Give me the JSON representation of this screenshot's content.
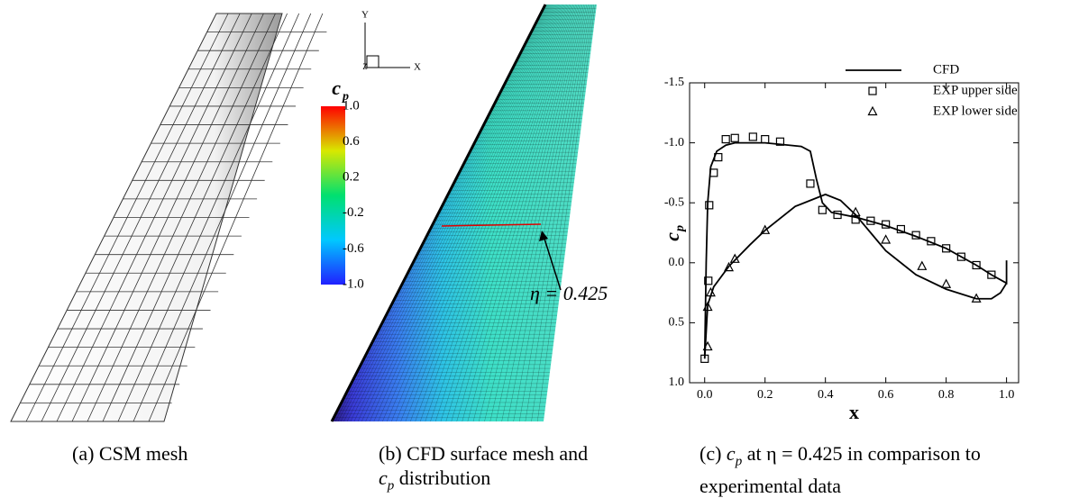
{
  "figure": {
    "caption_a": "(a) CSM mesh",
    "caption_b": {
      "prefix": "(b) CFD surface mesh and",
      "c": "c",
      "p": "p",
      "suffix": "distribution"
    },
    "caption_c": {
      "prefix": "(c)",
      "c": "c",
      "p": "p",
      "suffix": "at η = 0.425 in comparison to experimental data"
    },
    "colorbar": {
      "c": "c",
      "p": "p",
      "ticks": [
        {
          "value": 1,
          "label": "1.0"
        },
        0.6,
        0.2,
        -0.2,
        -0.6,
        {
          "value": -1,
          "label": "-1.0"
        }
      ],
      "lim": [
        -1,
        1
      ]
    },
    "triad": {
      "y": "Y",
      "x": "X",
      "z": "Z"
    },
    "annotation": "η = 0.425"
  },
  "chart_data": {
    "type": "line",
    "xlabel": "x",
    "ylabel": {
      "c": "c",
      "p": "p"
    },
    "xlim": [
      -0.05,
      1.04
    ],
    "ylim": [
      1.0,
      -1.5
    ],
    "xticks": [
      {
        "value": 0,
        "label": "0.0"
      },
      0.2,
      0.4,
      0.6,
      0.8,
      {
        "value": 1,
        "label": "1.0"
      }
    ],
    "yticks": [
      {
        "value": -1.5,
        "label": "-1.5"
      },
      {
        "value": -1,
        "label": "-1.0"
      },
      -0.5,
      {
        "value": 0,
        "label": "0.0"
      },
      0.5,
      {
        "value": 1,
        "label": "1.0"
      }
    ],
    "legend": "top-right",
    "series": [
      {
        "name": "CFD",
        "color": "#000000",
        "marker": "line",
        "x": [
          1.0,
          1.0,
          0.95,
          0.9,
          0.8,
          0.7,
          0.6,
          0.5,
          0.42,
          0.39,
          0.37,
          0.35,
          0.32,
          0.28,
          0.2,
          0.1,
          0.07,
          0.04,
          0.02,
          0.01,
          0.005,
          0.0,
          0.01,
          0.03,
          0.08,
          0.15,
          0.2,
          0.3,
          0.4,
          0.45,
          0.5,
          0.55,
          0.6,
          0.7,
          0.8,
          0.9,
          0.95,
          0.98,
          1.0
        ],
        "values": [
          -0.02,
          0.17,
          0.1,
          0.02,
          -0.12,
          -0.22,
          -0.31,
          -0.38,
          -0.42,
          -0.5,
          -0.7,
          -0.93,
          -0.97,
          -0.98,
          -1.0,
          -1.0,
          -0.98,
          -0.93,
          -0.8,
          -0.5,
          0.0,
          0.8,
          0.35,
          0.2,
          0.03,
          -0.15,
          -0.27,
          -0.47,
          -0.57,
          -0.52,
          -0.4,
          -0.25,
          -0.1,
          0.1,
          0.22,
          0.3,
          0.3,
          0.25,
          0.17
        ]
      },
      {
        "name": "EXP upper side",
        "color": "#000000",
        "marker": "square",
        "x": [
          0.0,
          0.012,
          0.015,
          0.03,
          0.045,
          0.07,
          0.1,
          0.16,
          0.2,
          0.25,
          0.35,
          0.39,
          0.44,
          0.5,
          0.55,
          0.6,
          0.65,
          0.7,
          0.75,
          0.8,
          0.85,
          0.9,
          0.95
        ],
        "values": [
          0.8,
          0.15,
          -0.48,
          -0.75,
          -0.88,
          -1.03,
          -1.04,
          -1.05,
          -1.03,
          -1.01,
          -0.66,
          -0.44,
          -0.4,
          -0.36,
          -0.35,
          -0.32,
          -0.28,
          -0.23,
          -0.18,
          -0.12,
          -0.05,
          0.02,
          0.1
        ]
      },
      {
        "name": "EXP lower side",
        "color": "#000000",
        "marker": "triangle",
        "x": [
          0.01,
          0.01,
          0.02,
          0.08,
          0.1,
          0.2,
          0.5,
          0.6,
          0.72,
          0.8,
          0.9
        ],
        "values": [
          0.7,
          0.37,
          0.25,
          0.04,
          -0.03,
          -0.27,
          -0.42,
          -0.19,
          0.03,
          0.18,
          0.3
        ]
      }
    ]
  }
}
